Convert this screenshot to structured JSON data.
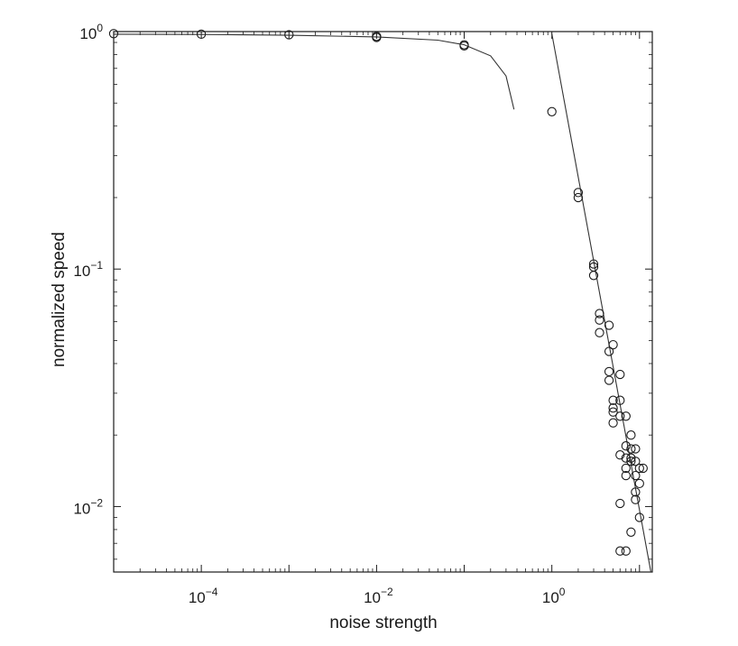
{
  "chart_data": {
    "type": "scatter",
    "title": "",
    "xlabel": "noise strength",
    "ylabel": "normalized speed",
    "x_scale": "log",
    "y_scale": "log",
    "xlim": [
      1e-05,
      14
    ],
    "ylim": [
      0.0053,
      1.0
    ],
    "grid": false,
    "legend": "none",
    "x_ticks": [
      {
        "base": "10",
        "exp": "−4",
        "value": 0.0001
      },
      {
        "base": "10",
        "exp": "−2",
        "value": 0.01
      },
      {
        "base": "10",
        "exp": "0",
        "value": 1
      }
    ],
    "y_ticks": [
      {
        "base": "10",
        "exp": "0",
        "value": 1
      },
      {
        "base": "10",
        "exp": "−1",
        "value": 0.1
      },
      {
        "base": "10",
        "exp": "−2",
        "value": 0.01
      }
    ],
    "series": [
      {
        "marker": "open-circle",
        "points": [
          [
            1e-05,
            0.98
          ],
          [
            0.0001,
            0.975
          ],
          [
            0.001,
            0.97
          ],
          [
            0.01,
            0.955
          ],
          [
            0.01,
            0.945
          ],
          [
            0.1,
            0.88
          ],
          [
            0.1,
            0.87
          ],
          [
            1.0,
            0.46
          ],
          [
            2.0,
            0.21
          ],
          [
            2.0,
            0.2
          ],
          [
            3.0,
            0.105
          ],
          [
            3.0,
            0.102
          ],
          [
            3.0,
            0.094
          ],
          [
            3.5,
            0.065
          ],
          [
            3.5,
            0.061
          ],
          [
            3.5,
            0.054
          ],
          [
            4.5,
            0.058
          ],
          [
            4.5,
            0.045
          ],
          [
            4.5,
            0.037
          ],
          [
            4.5,
            0.034
          ],
          [
            5.0,
            0.048
          ],
          [
            5.0,
            0.028
          ],
          [
            5.0,
            0.026
          ],
          [
            5.0,
            0.025
          ],
          [
            5.0,
            0.0225
          ],
          [
            6.0,
            0.036
          ],
          [
            6.0,
            0.028
          ],
          [
            6.0,
            0.024
          ],
          [
            6.0,
            0.0165
          ],
          [
            6.0,
            0.0103
          ],
          [
            6.0,
            0.0065
          ],
          [
            7.0,
            0.024
          ],
          [
            7.0,
            0.018
          ],
          [
            7.0,
            0.016
          ],
          [
            7.0,
            0.0145
          ],
          [
            7.0,
            0.0135
          ],
          [
            7.0,
            0.0065
          ],
          [
            8.0,
            0.02
          ],
          [
            8.0,
            0.0175
          ],
          [
            8.0,
            0.016
          ],
          [
            8.0,
            0.0155
          ],
          [
            8.0,
            0.0078
          ],
          [
            9.0,
            0.0175
          ],
          [
            9.0,
            0.0155
          ],
          [
            9.0,
            0.0135
          ],
          [
            9.0,
            0.0115
          ],
          [
            9.0,
            0.0107
          ],
          [
            10.0,
            0.0145
          ],
          [
            10.0,
            0.0125
          ],
          [
            10.0,
            0.009
          ],
          [
            11.0,
            0.0145
          ]
        ]
      }
    ],
    "fit_curve": {
      "points": [
        [
          1e-05,
          0.975
        ],
        [
          0.0001,
          0.972
        ],
        [
          0.001,
          0.965
        ],
        [
          0.01,
          0.95
        ],
        [
          0.05,
          0.92
        ],
        [
          0.1,
          0.88
        ],
        [
          0.2,
          0.79
        ],
        [
          0.3,
          0.65
        ],
        [
          0.37,
          0.47
        ]
      ]
    },
    "fit_line": {
      "points": [
        [
          1.0,
          0.98
        ],
        [
          13.5,
          0.0053
        ]
      ]
    }
  }
}
